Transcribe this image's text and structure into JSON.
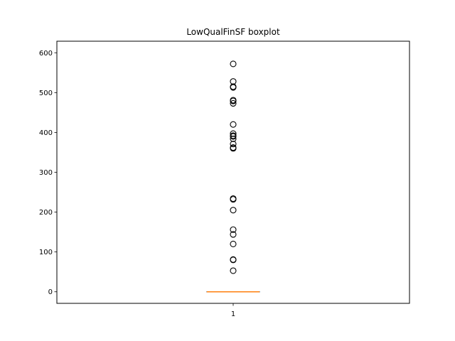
{
  "chart_data": {
    "type": "boxplot",
    "title": "LowQualFinSF boxplot",
    "xlabel": "",
    "ylabel": "",
    "categories": [
      "1"
    ],
    "ylim": [
      -29,
      629
    ],
    "yticks": [
      0,
      100,
      200,
      300,
      400,
      500,
      600
    ],
    "ytick_labels": [
      "0",
      "100",
      "200",
      "300",
      "400",
      "500",
      "600"
    ],
    "xtick_labels": [
      "1"
    ],
    "grid": false,
    "box": {
      "q1": 0,
      "median": 0,
      "q3": 0,
      "whisker_low": 0,
      "whisker_high": 0
    },
    "outliers": [
      572,
      528,
      515,
      513,
      481,
      479,
      473,
      420,
      397,
      392,
      390,
      384,
      371,
      362,
      360,
      234,
      232,
      205,
      156,
      144,
      120,
      81,
      80,
      53
    ],
    "colors": {
      "box": "#000000",
      "median": "#ff7f0e",
      "outlier_edge": "#000000"
    }
  }
}
